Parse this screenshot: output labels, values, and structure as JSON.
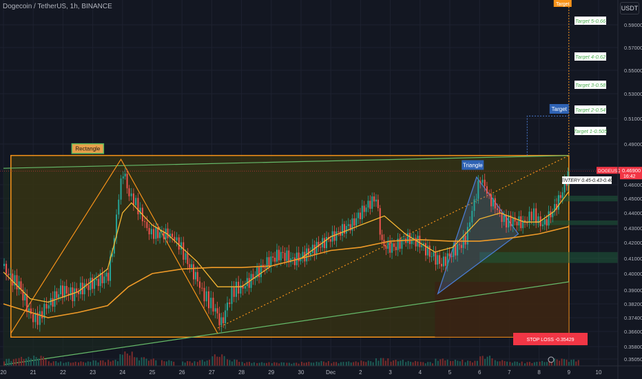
{
  "header": {
    "title": "Dogecoin / TetherUS, 1h, BINANCE",
    "quote": "USDT"
  },
  "colors": {
    "background": "#131722",
    "up": "#26a69a",
    "down": "#ef5350",
    "box_fill": "#3a3412",
    "box_border": "#f7931a",
    "ma_fast": "#f7b733",
    "ma_slow": "#f09b28",
    "channel": "#66bb6a",
    "triangle": "#4a7bd0",
    "target_text": "#4caf50",
    "stop_bg": "#f23645"
  },
  "chart_data": {
    "type": "candlestick",
    "symbol": "DOGEUSDT",
    "interval": "1h",
    "price_axis": {
      "ticks": [
        "0.59000",
        "0.57000",
        "0.55000",
        "0.53000",
        "0.51000",
        "0.49000",
        "0.47000",
        "0.46000",
        "0.45000",
        "0.44000",
        "0.43000",
        "0.42000",
        "0.41000",
        "0.40000",
        "0.39000",
        "0.38200",
        "0.37400",
        "0.36600",
        "0.35800",
        "0.35050"
      ],
      "current_price": "0.46900",
      "current_label": "DOGEUSDT",
      "countdown": "16:42",
      "scale": "log"
    },
    "time_axis": [
      "20",
      "21",
      "22",
      "23",
      "24",
      "25",
      "26",
      "27",
      "28",
      "29",
      "30",
      "Dec",
      "2",
      "3",
      "4",
      "5",
      "6",
      "7",
      "8",
      "9",
      "10"
    ],
    "price_path": [
      [
        19.5,
        0.405
      ],
      [
        20.0,
        0.395
      ],
      [
        20.4,
        0.378
      ],
      [
        20.7,
        0.372
      ],
      [
        21.0,
        0.381
      ],
      [
        21.4,
        0.387
      ],
      [
        21.8,
        0.385
      ],
      [
        22.2,
        0.392
      ],
      [
        22.6,
        0.398
      ],
      [
        23.0,
        0.402
      ],
      [
        23.2,
        0.425
      ],
      [
        23.35,
        0.455
      ],
      [
        23.5,
        0.47
      ],
      [
        23.7,
        0.455
      ],
      [
        24.0,
        0.44
      ],
      [
        24.3,
        0.432
      ],
      [
        24.6,
        0.426
      ],
      [
        25.0,
        0.428
      ],
      [
        25.3,
        0.418
      ],
      [
        25.6,
        0.412
      ],
      [
        26.0,
        0.395
      ],
      [
        26.3,
        0.388
      ],
      [
        26.6,
        0.375
      ],
      [
        26.8,
        0.368
      ],
      [
        27.0,
        0.38
      ],
      [
        27.3,
        0.39
      ],
      [
        27.6,
        0.396
      ],
      [
        28.0,
        0.403
      ],
      [
        28.4,
        0.408
      ],
      [
        28.8,
        0.41
      ],
      [
        29.2,
        0.406
      ],
      [
        29.6,
        0.412
      ],
      [
        30.0,
        0.42
      ],
      [
        30.4,
        0.425
      ],
      [
        30.8,
        0.428
      ],
      [
        31.2,
        0.43
      ],
      [
        31.6,
        0.44
      ],
      [
        32.0,
        0.45
      ],
      [
        32.2,
        0.42
      ],
      [
        32.6,
        0.42
      ],
      [
        33.0,
        0.425
      ],
      [
        33.4,
        0.42
      ],
      [
        33.8,
        0.41
      ],
      [
        34.2,
        0.404
      ],
      [
        34.6,
        0.415
      ],
      [
        35.0,
        0.425
      ],
      [
        35.3,
        0.445
      ],
      [
        35.5,
        0.462
      ],
      [
        35.8,
        0.45
      ],
      [
        36.0,
        0.443
      ],
      [
        36.3,
        0.438
      ],
      [
        36.6,
        0.432
      ],
      [
        37.0,
        0.433
      ],
      [
        37.3,
        0.437
      ],
      [
        37.6,
        0.435
      ],
      [
        38.0,
        0.445
      ],
      [
        38.2,
        0.452
      ],
      [
        38.4,
        0.462
      ],
      [
        38.5,
        0.469
      ]
    ],
    "ma_fast": [
      [
        19.5,
        0.401
      ],
      [
        20.4,
        0.385
      ],
      [
        21.0,
        0.383
      ],
      [
        22.0,
        0.389
      ],
      [
        23.0,
        0.403
      ],
      [
        23.5,
        0.44
      ],
      [
        23.8,
        0.447
      ],
      [
        24.5,
        0.432
      ],
      [
        25.0,
        0.426
      ],
      [
        26.0,
        0.408
      ],
      [
        26.7,
        0.392
      ],
      [
        27.5,
        0.392
      ],
      [
        28.5,
        0.405
      ],
      [
        29.5,
        0.41
      ],
      [
        30.5,
        0.424
      ],
      [
        31.5,
        0.432
      ],
      [
        32.3,
        0.438
      ],
      [
        33.0,
        0.426
      ],
      [
        34.0,
        0.414
      ],
      [
        34.6,
        0.417
      ],
      [
        35.5,
        0.436
      ],
      [
        36.2,
        0.44
      ],
      [
        37.0,
        0.434
      ],
      [
        37.5,
        0.434
      ],
      [
        38.0,
        0.441
      ],
      [
        38.5,
        0.455
      ]
    ],
    "ma_slow": [
      [
        19.5,
        0.382
      ],
      [
        21.0,
        0.374
      ],
      [
        22.0,
        0.377
      ],
      [
        23.0,
        0.381
      ],
      [
        23.7,
        0.392
      ],
      [
        24.5,
        0.4
      ],
      [
        25.5,
        0.403
      ],
      [
        26.5,
        0.404
      ],
      [
        27.5,
        0.404
      ],
      [
        28.5,
        0.405
      ],
      [
        29.5,
        0.41
      ],
      [
        30.5,
        0.415
      ],
      [
        31.5,
        0.417
      ],
      [
        32.5,
        0.421
      ],
      [
        33.5,
        0.422
      ],
      [
        34.5,
        0.421
      ],
      [
        35.5,
        0.421
      ],
      [
        36.5,
        0.423
      ],
      [
        37.5,
        0.426
      ],
      [
        38.5,
        0.431
      ]
    ],
    "volume": [
      [
        19.5,
        1.8
      ],
      [
        20.0,
        2.2
      ],
      [
        20.5,
        2.5
      ],
      [
        21.0,
        1.2
      ],
      [
        21.5,
        1.0
      ],
      [
        22.0,
        1.1
      ],
      [
        22.5,
        1.4
      ],
      [
        23.0,
        1.5
      ],
      [
        23.4,
        3.5
      ],
      [
        23.8,
        2.2
      ],
      [
        24.2,
        1.8
      ],
      [
        24.8,
        1.4
      ],
      [
        25.5,
        1.2
      ],
      [
        26.0,
        1.5
      ],
      [
        26.5,
        2.8
      ],
      [
        27.0,
        1.6
      ],
      [
        27.5,
        1.0
      ],
      [
        28.0,
        0.9
      ],
      [
        28.5,
        0.9
      ],
      [
        29.0,
        0.8
      ],
      [
        29.5,
        1.0
      ],
      [
        30.0,
        1.2
      ],
      [
        30.5,
        1.0
      ],
      [
        31.0,
        1.1
      ],
      [
        31.5,
        1.3
      ],
      [
        32.0,
        2.0
      ],
      [
        32.5,
        1.5
      ],
      [
        33.0,
        1.2
      ],
      [
        33.5,
        1.0
      ],
      [
        34.0,
        1.8
      ],
      [
        34.5,
        1.5
      ],
      [
        35.0,
        1.3
      ],
      [
        35.5,
        2.5
      ],
      [
        36.0,
        1.4
      ],
      [
        36.5,
        1.1
      ],
      [
        37.0,
        1.0
      ],
      [
        37.5,
        1.2
      ],
      [
        38.0,
        1.8
      ],
      [
        38.4,
        1.6
      ]
    ],
    "annotations": {
      "rectangle": {
        "label": "Rectangle",
        "x0": 19.75,
        "x1": 38.5,
        "top": 0.481,
        "bottom": 0.363
      },
      "triangle": {
        "label": "Triangle",
        "points": [
          [
            34.1,
            0.388
          ],
          [
            35.4,
            0.465
          ],
          [
            36.8,
            0.426
          ]
        ]
      },
      "channel_upper": [
        [
          19.5,
          0.471
        ],
        [
          38.5,
          0.481
        ]
      ],
      "channel_lower": [
        [
          19.5,
          0.347
        ],
        [
          38.5,
          0.395
        ]
      ],
      "forecast_line": [
        [
          26.7,
          0.368
        ],
        [
          38.5,
          0.481
        ]
      ],
      "zigzag": [
        [
          19.75,
          0.365
        ],
        [
          23.45,
          0.478
        ],
        [
          26.7,
          0.365
        ]
      ],
      "green_zones": [
        [
          [
            35.5,
            38.5
          ],
          [
            0.407,
            0.414
          ]
        ],
        [
          [
            38.0,
            38.5
          ],
          [
            0.448,
            0.452
          ]
        ],
        [
          [
            37.0,
            38.5
          ],
          [
            0.432,
            0.435
          ]
        ]
      ],
      "targets": [
        {
          "label": "Target 1-0.505",
          "price": 0.505
        },
        {
          "label": "Target 2-0.54",
          "price": 0.51
        },
        {
          "label": "Target 3-0.58",
          "price": 0.52
        },
        {
          "label": "Target 4-0.62",
          "price": 0.55
        },
        {
          "label": "Target 5-0.66",
          "price": 0.6
        }
      ],
      "target_markers": [
        {
          "label": "Target",
          "price": 0.512
        },
        {
          "label": "Target",
          "price": 0.61
        }
      ],
      "entry": {
        "label": "ENTERY 0.45-0.43-0.40",
        "price": 0.462
      },
      "stop_loss": {
        "label": "STOP LOSS -0.35429",
        "price": 0.3555
      }
    }
  }
}
